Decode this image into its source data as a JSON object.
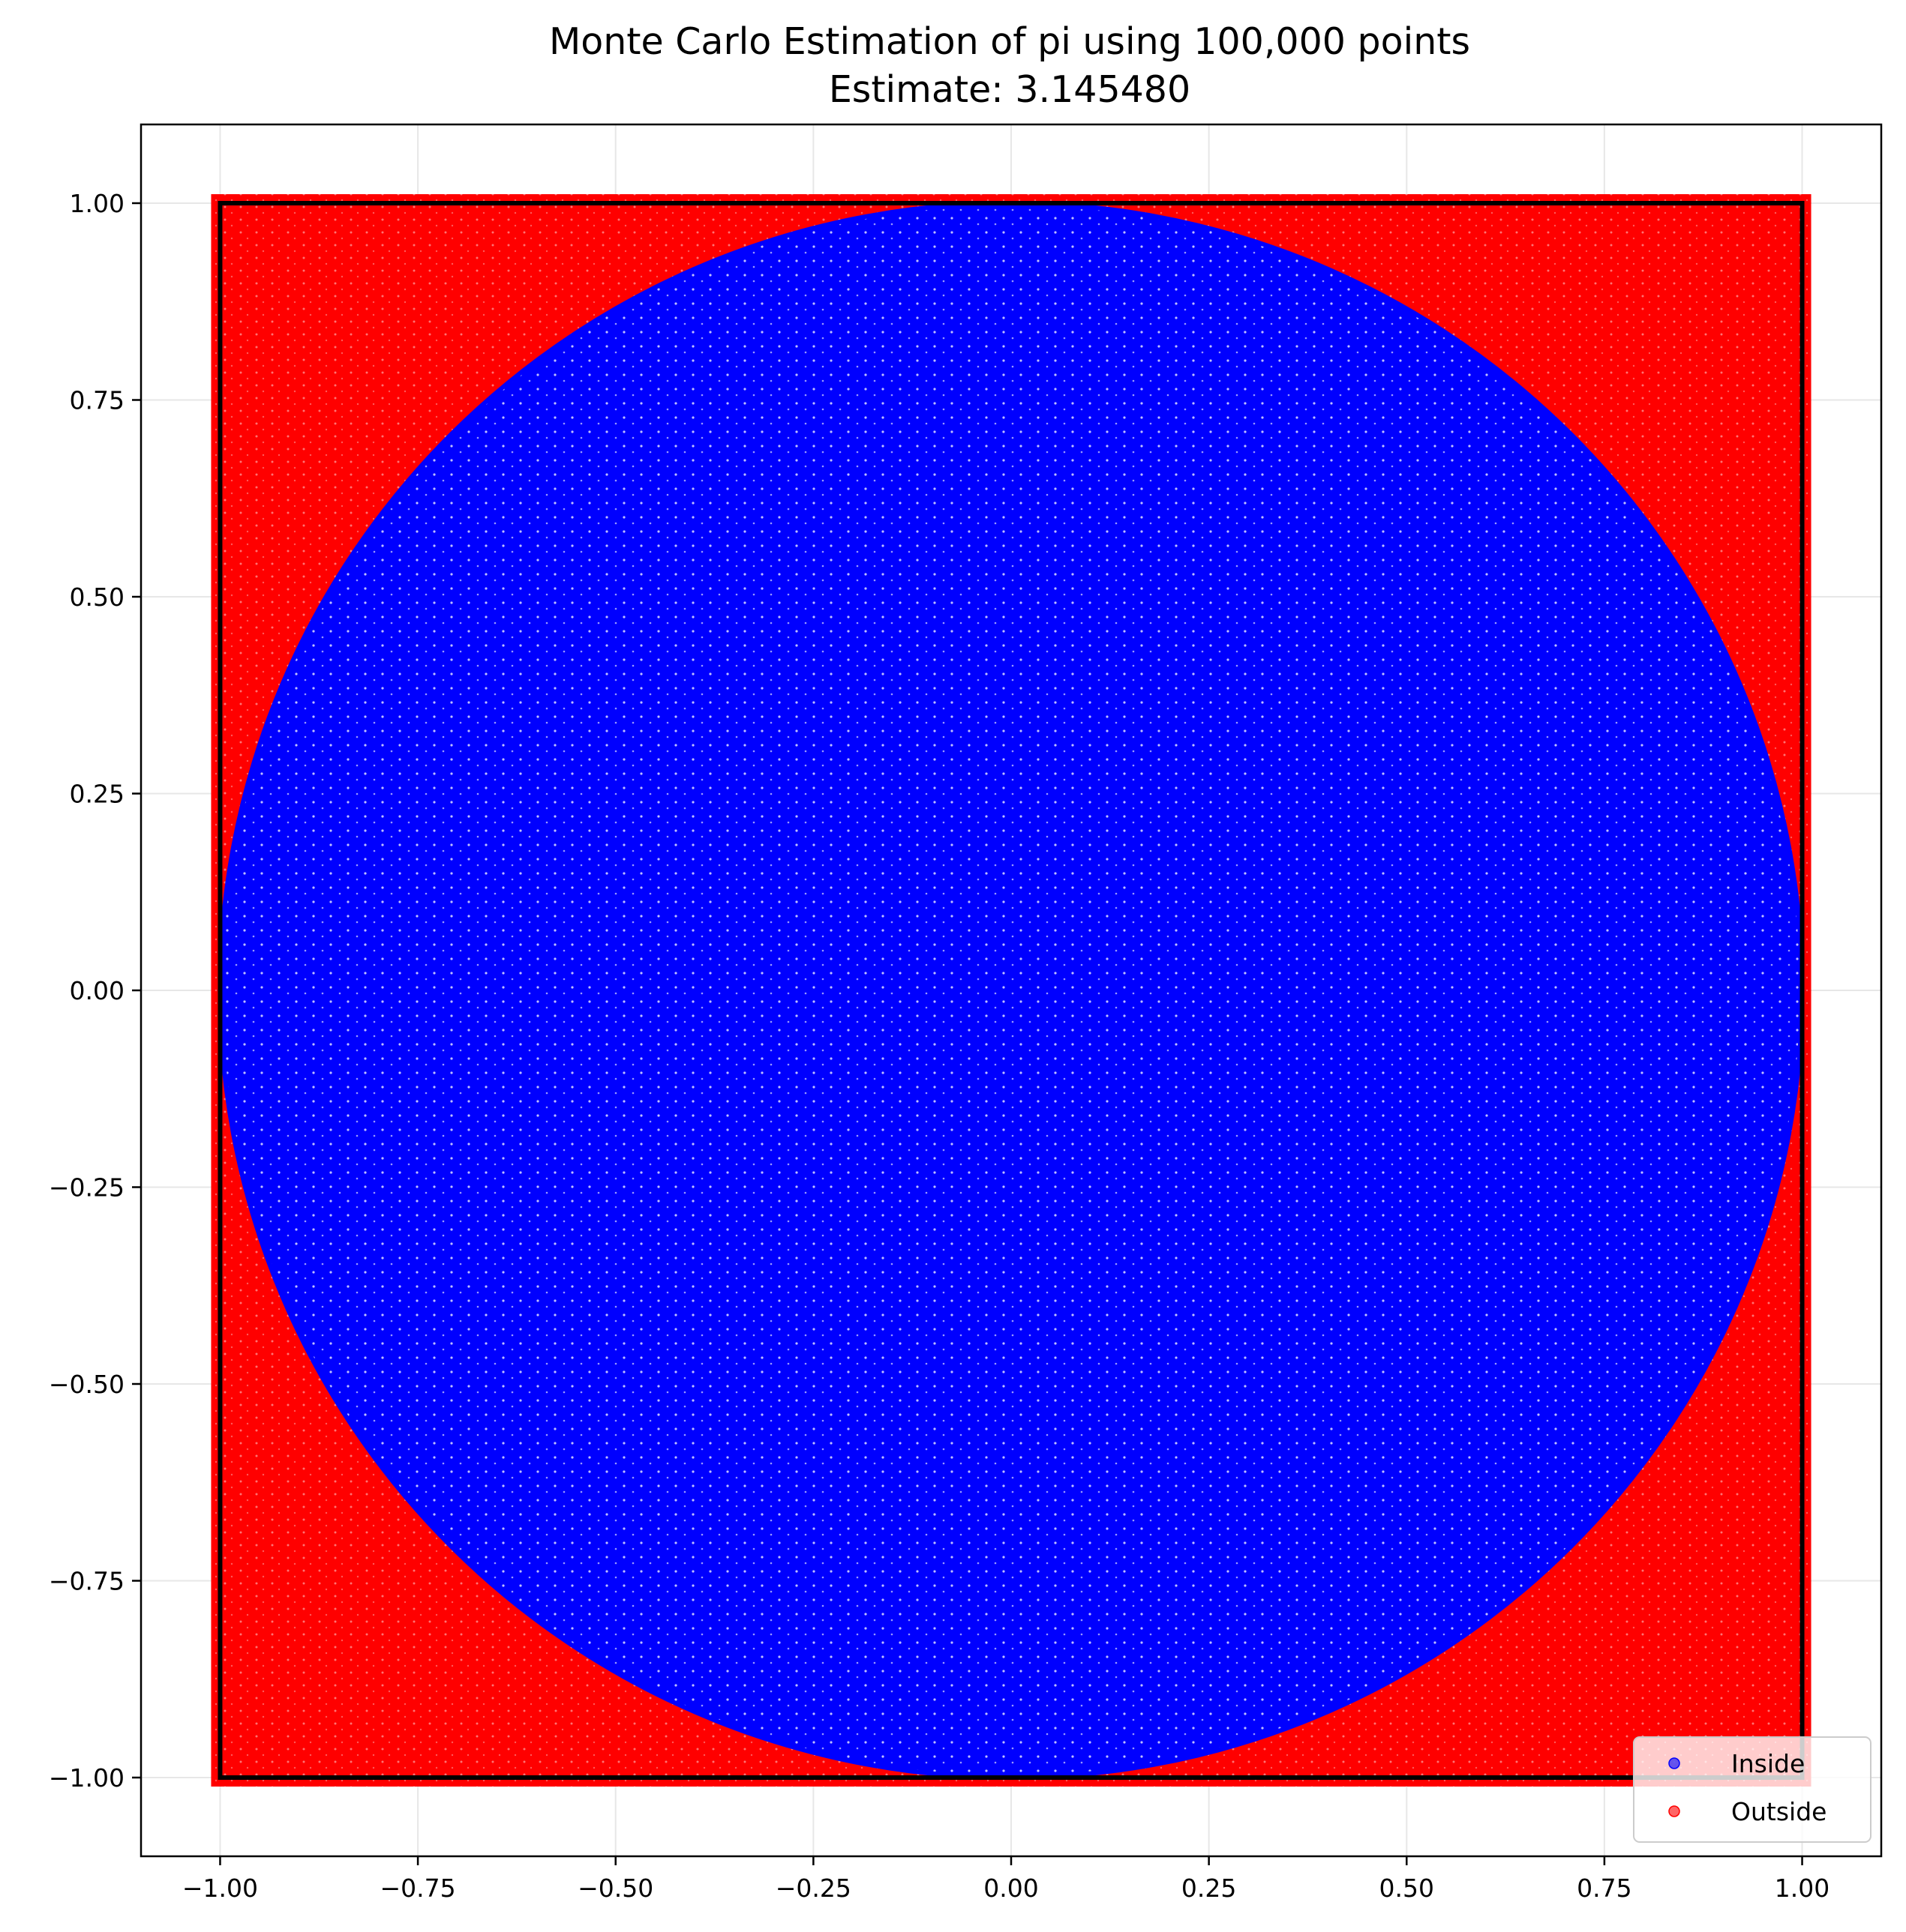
{
  "chart_data": {
    "type": "scatter",
    "title": "Monte Carlo Estimation of pi using 100,000 points",
    "subtitle": "Estimate: 3.145480",
    "xlabel": "",
    "ylabel": "",
    "xlim": [
      -1.1,
      1.1
    ],
    "ylim": [
      -1.1,
      1.1
    ],
    "x_ticks": [
      -1.0,
      -0.75,
      -0.5,
      -0.25,
      0.0,
      0.25,
      0.5,
      0.75,
      1.0
    ],
    "y_ticks": [
      -1.0,
      -0.75,
      -0.5,
      -0.25,
      0.0,
      0.25,
      0.5,
      0.75,
      1.0
    ],
    "x_tick_labels": [
      "−1.00",
      "−0.75",
      "−0.50",
      "−0.25",
      "0.00",
      "0.25",
      "0.50",
      "0.75",
      "1.00"
    ],
    "y_tick_labels": [
      "−1.00",
      "−0.75",
      "−0.50",
      "−0.25",
      "0.00",
      "0.25",
      "0.50",
      "0.75",
      "1.00"
    ],
    "grid": true,
    "legend_position": "bottom-right",
    "total_points": 100000,
    "circle": {
      "center": [
        0,
        0
      ],
      "radius": 1
    },
    "square": {
      "x": [
        -1,
        1
      ],
      "y": [
        -1,
        1
      ]
    },
    "series": [
      {
        "name": "Inside",
        "color": "#0000ff",
        "region": "x^2 + y^2 <= 1"
      },
      {
        "name": "Outside",
        "color": "#ff0000",
        "region": "x^2 + y^2 > 1, |x| <= 1, |y| <= 1"
      }
    ]
  }
}
